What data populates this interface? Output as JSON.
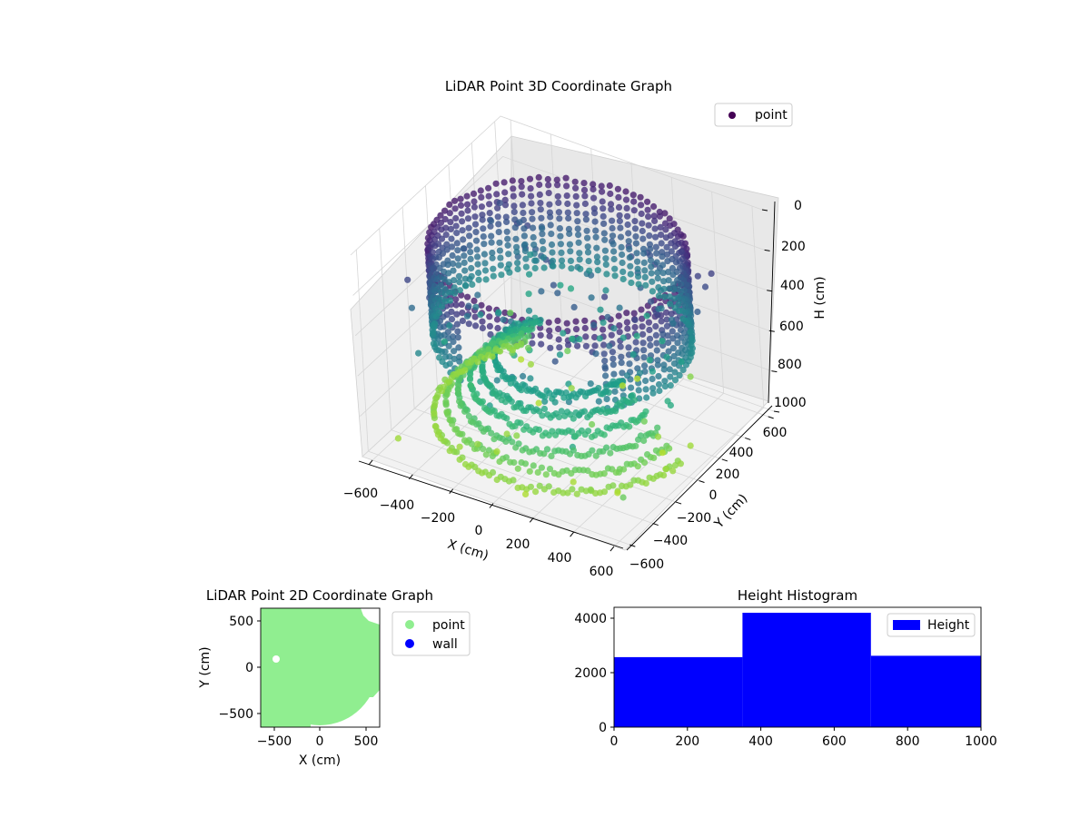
{
  "chart_data": [
    {
      "type": "scatter",
      "projection": "3d",
      "title": "LiDAR Point 3D Coordinate Graph",
      "xlabel": "X (cm)",
      "ylabel": "Y (cm)",
      "zlabel": "H (cm)",
      "xticks": [
        "−600",
        "−400",
        "−200",
        "0",
        "200",
        "400",
        "600"
      ],
      "yticks": [
        "−600",
        "−400",
        "−200",
        "0",
        "200",
        "400",
        "600"
      ],
      "zticks": [
        "0",
        "200",
        "400",
        "600",
        "800",
        "1000"
      ],
      "xlim": [
        -650,
        650
      ],
      "ylim": [
        -650,
        650
      ],
      "zlim": [
        0,
        1000
      ],
      "z_axis_inverted": true,
      "colormap": "viridis",
      "grid": true,
      "legend": {
        "entries": [
          "point"
        ],
        "location": "upper-right",
        "marker_color": "#440154"
      },
      "series": [
        {
          "name": "point",
          "description_points": [
            {
              "x": -550,
              "y": -300,
              "z": 150
            },
            {
              "x": -400,
              "y": 500,
              "z": 80
            },
            {
              "x": -200,
              "y": 600,
              "z": 60
            },
            {
              "x": 100,
              "y": 620,
              "z": 60
            },
            {
              "x": 400,
              "y": 550,
              "z": 80
            },
            {
              "x": 600,
              "y": 300,
              "z": 120
            },
            {
              "x": 600,
              "y": -200,
              "z": 300
            },
            {
              "x": 400,
              "y": -500,
              "z": 500
            },
            {
              "x": 0,
              "y": -600,
              "z": 550
            },
            {
              "x": -400,
              "y": -550,
              "z": 400
            },
            {
              "x": -600,
              "y": -200,
              "z": 600
            },
            {
              "x": -500,
              "y": 300,
              "z": 900
            },
            {
              "x": 0,
              "y": 0,
              "z": 500
            },
            {
              "x": 200,
              "y": -300,
              "z": 950
            }
          ]
        }
      ]
    },
    {
      "type": "scatter",
      "title": "LiDAR Point 2D Coordinate Graph",
      "xlabel": "X (cm)",
      "ylabel": "Y (cm)",
      "xticks": [
        "−500",
        "0",
        "500"
      ],
      "yticks": [
        "500",
        "0",
        "−500"
      ],
      "xlim": [
        -650,
        650
      ],
      "ylim": [
        -650,
        650
      ],
      "legend": {
        "entries": [
          "point",
          "wall"
        ],
        "location": "outside-right"
      },
      "colors": {
        "point": "#90ee90",
        "wall": "#0000ff"
      },
      "series": [
        {
          "name": "point",
          "shape": "filled-disk",
          "radius": 640,
          "center": [
            0,
            0
          ]
        },
        {
          "name": "wall",
          "values": []
        }
      ]
    },
    {
      "type": "bar",
      "subtype": "histogram",
      "title": "Height Histogram",
      "xlim": [
        0,
        1000
      ],
      "ylim": [
        0,
        4400
      ],
      "xticks": [
        "0",
        "200",
        "400",
        "600",
        "800",
        "1000"
      ],
      "yticks": [
        "0",
        "2000",
        "4000"
      ],
      "legend": {
        "entries": [
          "Height"
        ],
        "location": "upper-right"
      },
      "color": "#0000ff",
      "series": [
        {
          "name": "Height",
          "bins": [
            {
              "start": 0,
              "end": 350,
              "count": 2570
            },
            {
              "start": 350,
              "end": 700,
              "count": 4200
            },
            {
              "start": 700,
              "end": 1000,
              "count": 2620
            }
          ]
        }
      ]
    }
  ]
}
